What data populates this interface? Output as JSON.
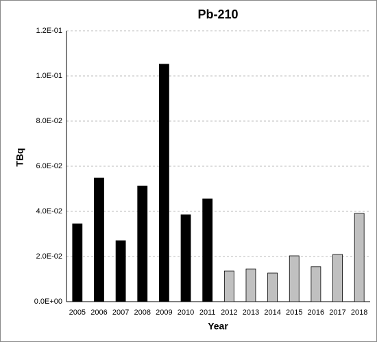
{
  "chart_data": {
    "type": "bar",
    "title": "Pb-210",
    "x_label": "Year",
    "y_label": "TBq",
    "categories": [
      "2005",
      "2006",
      "2007",
      "2008",
      "2009",
      "2010",
      "2011",
      "2012",
      "2013",
      "2014",
      "2015",
      "2016",
      "2017",
      "2018"
    ],
    "values": [
      0.0345,
      0.0548,
      0.027,
      0.0512,
      0.1052,
      0.0385,
      0.0455,
      0.0136,
      0.0145,
      0.0127,
      0.0203,
      0.0155,
      0.0209,
      0.0391
    ],
    "colors": [
      "#000000",
      "#000000",
      "#000000",
      "#000000",
      "#000000",
      "#000000",
      "#000000",
      "#c0c0c0",
      "#c0c0c0",
      "#c0c0c0",
      "#c0c0c0",
      "#c0c0c0",
      "#c0c0c0",
      "#c0c0c0"
    ],
    "ylim": [
      0,
      0.12
    ],
    "yticks": [
      {
        "value": 0,
        "label": "0.0E+00"
      },
      {
        "value": 0.02,
        "label": "2.0E-02"
      },
      {
        "value": 0.04,
        "label": "4.0E-02"
      },
      {
        "value": 0.06,
        "label": "6.0E-02"
      },
      {
        "value": 0.08,
        "label": "8.0E-02"
      },
      {
        "value": 0.1,
        "label": "1.0E-01"
      },
      {
        "value": 0.12,
        "label": "1.2E-01"
      }
    ],
    "grid": true
  }
}
